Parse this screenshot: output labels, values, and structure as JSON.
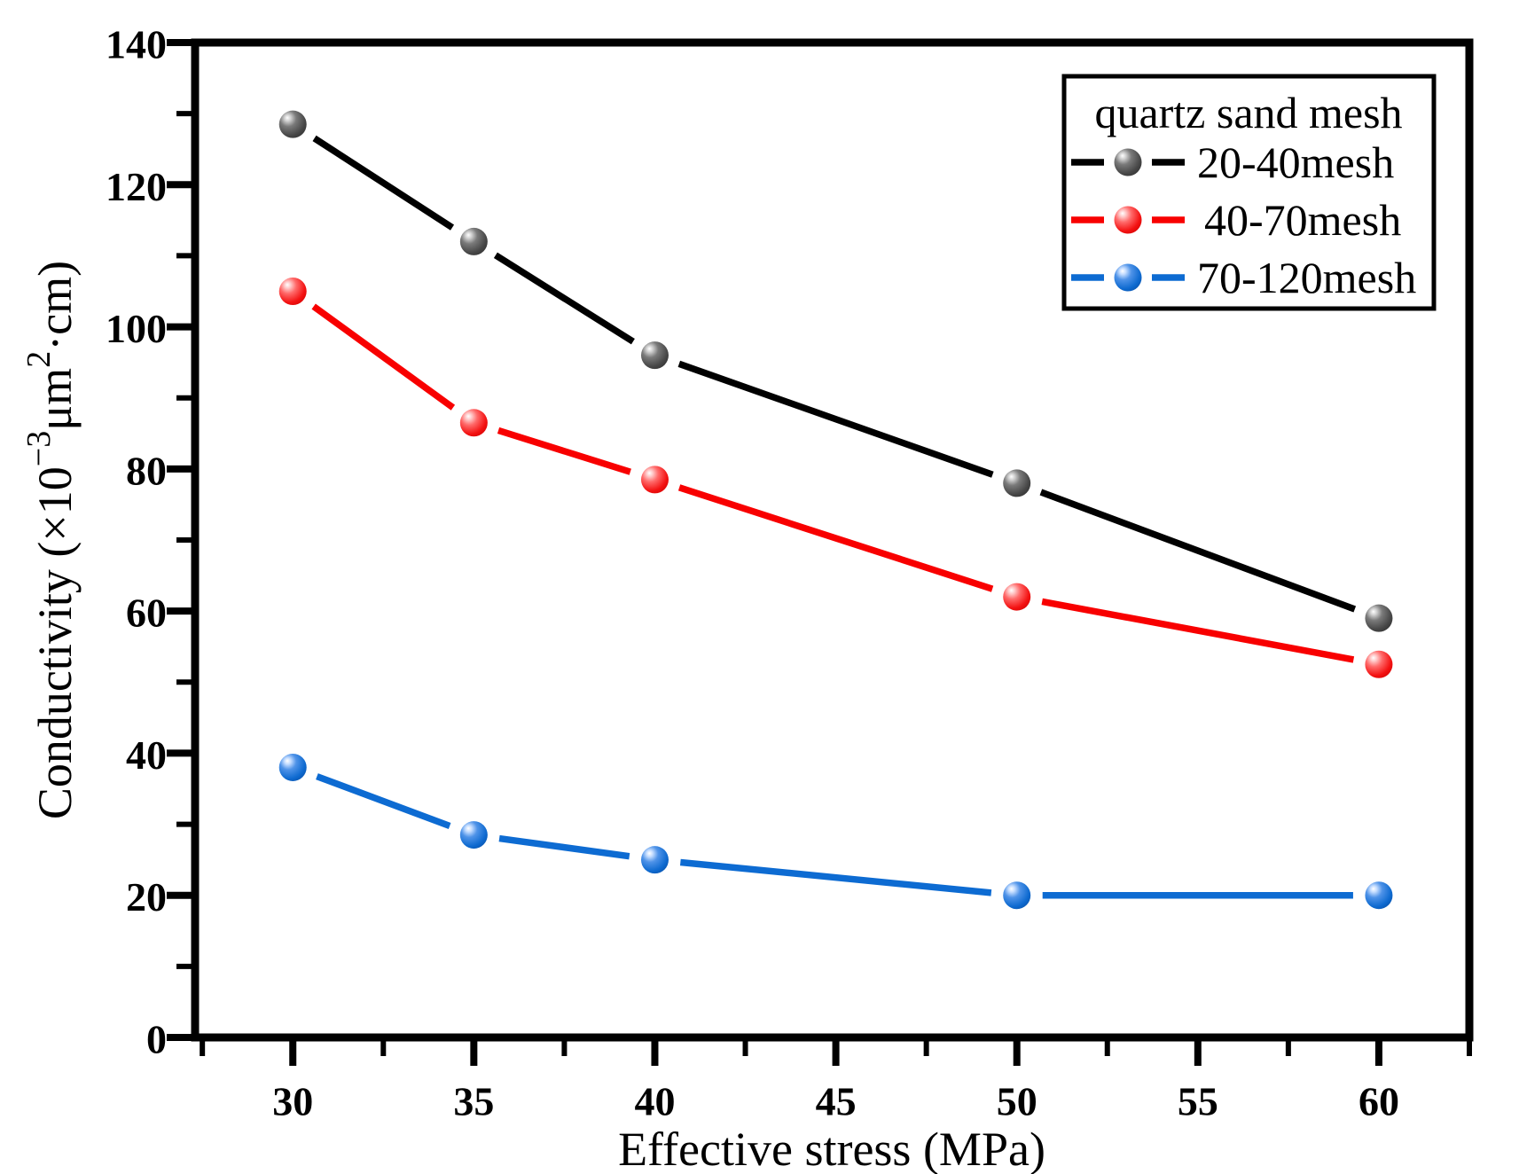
{
  "chart_data": {
    "type": "line",
    "title": "",
    "xlabel": "Effective stress (MPa)",
    "ylabel": "Conductivity (×10⁻³μm²·cm)",
    "ylabel_parts": [
      {
        "text": "Conductivity (×10",
        "sup": false
      },
      {
        "text": "−3",
        "sup": true
      },
      {
        "text": "μm",
        "sup": false
      },
      {
        "text": "2",
        "sup": true
      },
      {
        "text": "·cm)",
        "sup": false
      }
    ],
    "xlim": [
      27.3,
      62.5
    ],
    "ylim": [
      0,
      140
    ],
    "x_major_ticks": [
      30,
      35,
      40,
      45,
      50,
      55,
      60
    ],
    "x_minor_ticks": [
      27.5,
      32.5,
      37.5,
      42.5,
      47.5,
      52.5,
      57.5,
      62.5
    ],
    "y_major_ticks": [
      0,
      20,
      40,
      60,
      80,
      100,
      120,
      140
    ],
    "y_minor_ticks": [
      10,
      30,
      50,
      70,
      90,
      110,
      130
    ],
    "grid": false,
    "marker": "sphere",
    "legend": {
      "title": "quartz sand mesh",
      "position": "top-right"
    },
    "x": [
      30,
      35,
      40,
      50,
      60
    ],
    "series": [
      {
        "name": "20-40mesh",
        "line_color": "#000000",
        "marker_gradient": [
          "#ffffff",
          "#cfcfcf",
          "#7a7a7a",
          "#474747",
          "#2b2b2b"
        ],
        "values": [
          128.5,
          112,
          96,
          78,
          59
        ]
      },
      {
        "name": "40-70mesh",
        "line_color": "#f80000",
        "marker_gradient": [
          "#ffffff",
          "#ffc8c8",
          "#ff6a6a",
          "#f31111",
          "#c90000"
        ],
        "values": [
          105,
          86.5,
          78.5,
          62,
          52.5
        ]
      },
      {
        "name": "70-120mesh",
        "line_color": "#0d6bd2",
        "marker_gradient": [
          "#ffffff",
          "#c3dcff",
          "#4f93e8",
          "#0e6ad0",
          "#084a9e"
        ],
        "values": [
          38,
          28.5,
          25,
          20,
          20
        ]
      }
    ]
  }
}
